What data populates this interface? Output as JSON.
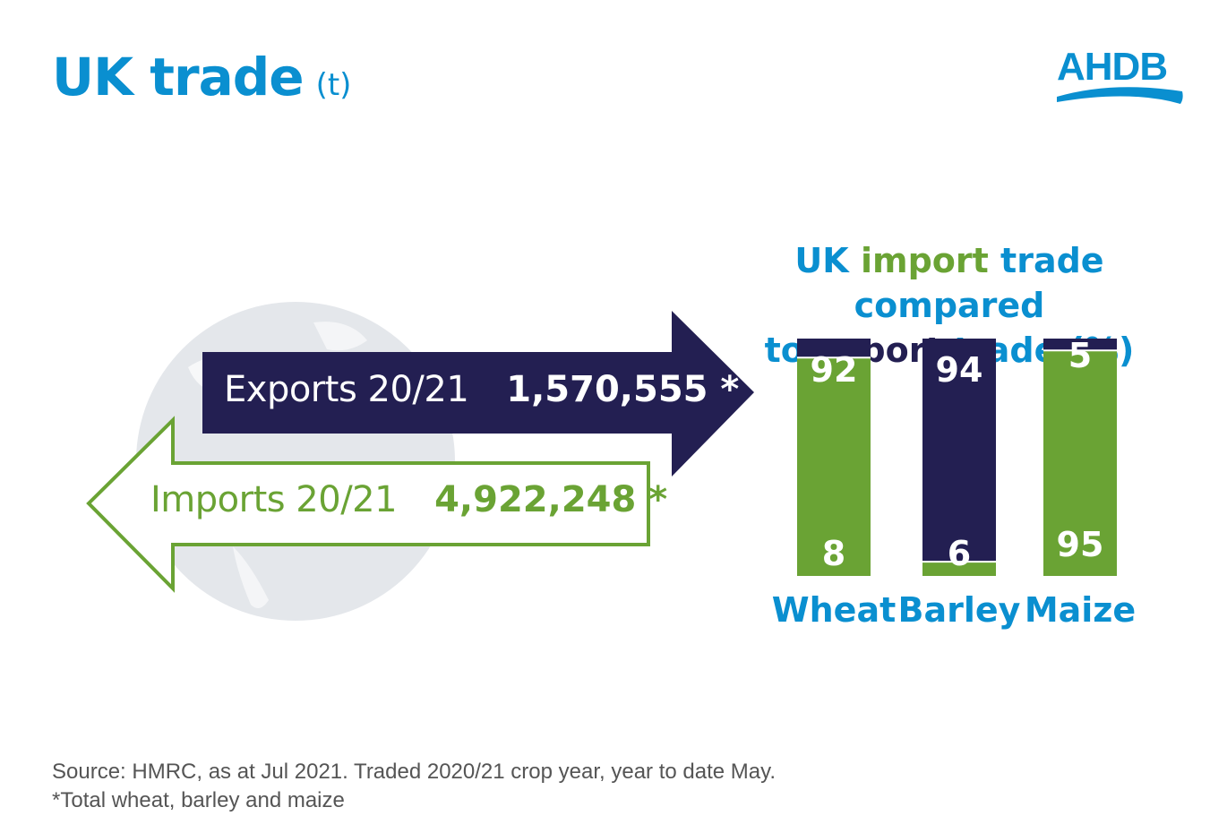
{
  "header": {
    "title": "UK trade",
    "unit": "(t)",
    "logo_text": "AHDB"
  },
  "trade": {
    "exports": {
      "label": "Exports 20/21",
      "value": "1,570,555 *"
    },
    "imports": {
      "label": "Imports 20/21",
      "value": "4,922,248 *"
    }
  },
  "colors": {
    "title_blue": "#0a8fd0",
    "import_green": "#6aa334",
    "export_navy": "#231f52",
    "globe_grey": "#e4e7eb"
  },
  "chart_heading": {
    "part1": "UK",
    "part2": "import",
    "part3": "trade compared",
    "part4": "to",
    "part5": "export",
    "part6": "trade (%)"
  },
  "chart_data": {
    "type": "bar",
    "stacked": true,
    "categories": [
      "Wheat",
      "Barley",
      "Maize"
    ],
    "series": [
      {
        "name": "import",
        "values": [
          92,
          6,
          95
        ],
        "color": "#6aa334"
      },
      {
        "name": "export",
        "values": [
          8,
          94,
          5
        ],
        "color": "#231f52"
      }
    ],
    "ylim": [
      0,
      100
    ],
    "legend": "none"
  },
  "footnote": {
    "line1": "Source: HMRC, as at Jul 2021. Traded 2020/21 crop year, year to date May.",
    "line2": "*Total wheat, barley and maize"
  }
}
